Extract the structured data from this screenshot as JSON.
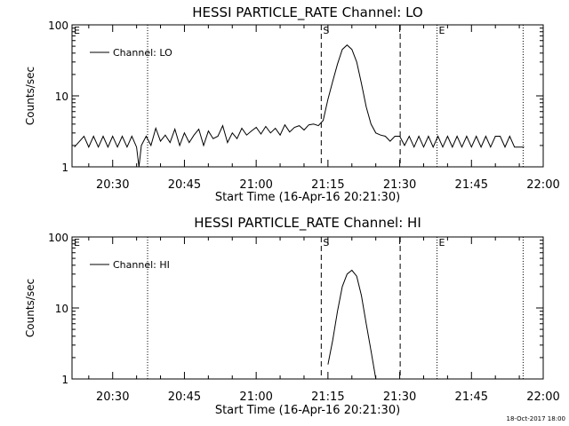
{
  "chart_data": [
    {
      "type": "line",
      "title": "HESSI PARTICLE_RATE Channel: LO",
      "xlabel": "Start Time (16-Apr-16 20:21:30)",
      "ylabel": "Counts/sec",
      "y_scale": "log",
      "ylim": [
        1,
        100
      ],
      "xlim_minutes_after_20:00": [
        21.5,
        120
      ],
      "x_ticks": [
        {
          "label": "20:30",
          "minute": 30
        },
        {
          "label": "20:45",
          "minute": 45
        },
        {
          "label": "21:00",
          "minute": 60
        },
        {
          "label": "21:15",
          "minute": 75
        },
        {
          "label": "21:30",
          "minute": 90
        },
        {
          "label": "21:45",
          "minute": 105
        },
        {
          "label": "22:00",
          "minute": 120
        }
      ],
      "y_ticks": [
        {
          "label": "1",
          "value": 1
        },
        {
          "label": "10",
          "value": 10
        },
        {
          "label": "100",
          "value": 100
        }
      ],
      "legend": {
        "label": "Channel: LO",
        "position": "top-left"
      },
      "markers": [
        {
          "label": "E",
          "minute": 21.5,
          "style": "none"
        },
        {
          "label": "",
          "minute": 37.3,
          "style": "dotted"
        },
        {
          "label": "S",
          "minute": 73.6,
          "style": "dashed"
        },
        {
          "label": "",
          "minute": 90.1,
          "style": "dashed"
        },
        {
          "label": "E",
          "minute": 97.8,
          "style": "dotted"
        },
        {
          "label": "",
          "minute": 115.8,
          "style": "dotted"
        }
      ],
      "series": [
        {
          "name": "Channel: LO",
          "x": [
            22,
            24,
            25,
            26,
            27,
            28,
            29,
            30,
            31,
            32,
            33,
            34,
            35,
            35.5,
            36,
            37,
            38,
            39,
            40,
            41,
            42,
            43,
            44,
            45,
            46,
            47,
            48,
            49,
            50,
            51,
            52,
            53,
            54,
            55,
            56,
            57,
            58,
            59,
            60,
            61,
            62,
            63,
            64,
            65,
            66,
            67,
            68,
            69,
            70,
            71,
            72,
            73,
            74,
            75,
            76,
            77,
            78,
            79,
            80,
            81,
            82,
            83,
            84,
            85,
            86,
            87,
            88,
            89,
            90,
            91,
            92,
            93,
            94,
            95,
            96,
            97,
            98,
            99,
            100,
            101,
            102,
            103,
            104,
            105,
            106,
            107,
            108,
            109,
            110,
            111,
            112,
            113,
            114,
            115,
            116
          ],
          "y": [
            1.9,
            2.7,
            1.9,
            2.7,
            1.9,
            2.7,
            1.9,
            2.7,
            1.9,
            2.7,
            1.9,
            2.7,
            1.9,
            1.0,
            2.0,
            2.7,
            2.0,
            3.5,
            2.3,
            2.8,
            2.2,
            3.4,
            2.0,
            3.0,
            2.2,
            2.8,
            3.4,
            2.0,
            3.2,
            2.5,
            2.7,
            3.8,
            2.2,
            3.0,
            2.5,
            3.5,
            2.8,
            3.2,
            3.6,
            2.9,
            3.7,
            3.0,
            3.5,
            2.8,
            3.9,
            3.1,
            3.6,
            3.8,
            3.3,
            3.9,
            4.0,
            3.8,
            4.5,
            9.0,
            16.0,
            28.0,
            45.0,
            52.0,
            45.0,
            30.0,
            15.0,
            7.0,
            4.0,
            3.0,
            2.8,
            2.7,
            2.3,
            2.7,
            2.7,
            2.0,
            2.7,
            1.9,
            2.7,
            1.9,
            2.7,
            1.9,
            2.7,
            1.9,
            2.7,
            1.9,
            2.7,
            1.9,
            2.7,
            1.9,
            2.7,
            1.9,
            2.7,
            1.9,
            2.7,
            2.7,
            1.9,
            2.7,
            1.9,
            1.9,
            1.9
          ]
        }
      ]
    },
    {
      "type": "line",
      "title": "HESSI PARTICLE_RATE Channel: HI",
      "xlabel": "Start Time (16-Apr-16 20:21:30)",
      "ylabel": "Counts/sec",
      "y_scale": "log",
      "ylim": [
        1,
        100
      ],
      "xlim_minutes_after_20:00": [
        21.5,
        120
      ],
      "x_ticks": [
        {
          "label": "20:30",
          "minute": 30
        },
        {
          "label": "20:45",
          "minute": 45
        },
        {
          "label": "21:00",
          "minute": 60
        },
        {
          "label": "21:15",
          "minute": 75
        },
        {
          "label": "21:30",
          "minute": 90
        },
        {
          "label": "21:45",
          "minute": 105
        },
        {
          "label": "22:00",
          "minute": 120
        }
      ],
      "y_ticks": [
        {
          "label": "1",
          "value": 1
        },
        {
          "label": "10",
          "value": 10
        },
        {
          "label": "100",
          "value": 100
        }
      ],
      "legend": {
        "label": "Channel: HI",
        "position": "top-left"
      },
      "markers": [
        {
          "label": "E",
          "minute": 21.5,
          "style": "none"
        },
        {
          "label": "",
          "minute": 37.3,
          "style": "dotted"
        },
        {
          "label": "S",
          "minute": 73.6,
          "style": "dashed"
        },
        {
          "label": "",
          "minute": 90.1,
          "style": "dashed"
        },
        {
          "label": "E",
          "minute": 97.8,
          "style": "dotted"
        },
        {
          "label": "",
          "minute": 115.8,
          "style": "dotted"
        }
      ],
      "series": [
        {
          "name": "Channel: HI",
          "x": [
            75,
            76,
            77,
            78,
            79,
            80,
            81,
            82,
            83,
            84,
            85
          ],
          "y": [
            1.6,
            3.5,
            9.0,
            20.0,
            30.0,
            34.0,
            28.0,
            15.0,
            6.0,
            2.5,
            1.0
          ]
        }
      ]
    }
  ],
  "footer": {
    "timestamp": "18-Oct-2017 18:00"
  }
}
